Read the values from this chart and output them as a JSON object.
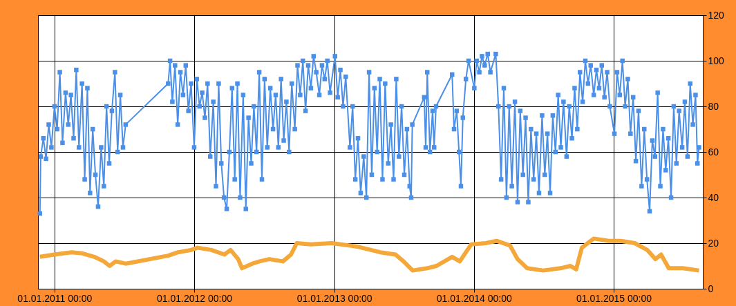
{
  "chart_data": {
    "type": "line",
    "xlim": [
      "2010-11-19",
      "2015-08-22"
    ],
    "xticks": [
      {
        "value": "2011-01-01",
        "label": "01.01.2011 00:00"
      },
      {
        "value": "2012-01-01",
        "label": "01.01.2012 00:00"
      },
      {
        "value": "2013-01-01",
        "label": "01.01.2013 00:00"
      },
      {
        "value": "2014-01-01",
        "label": "01.01.2014 00:00"
      },
      {
        "value": "2015-01-01",
        "label": "01.01.2015 00:00"
      }
    ],
    "ylim": [
      0,
      120
    ],
    "yticks": [
      0,
      20,
      40,
      60,
      80,
      100,
      120
    ],
    "grid": true,
    "series": [
      {
        "color": "#4a8fe8",
        "marker": "square",
        "x": [
          "2010-11-24",
          "2010-11-26",
          "2010-12-03",
          "2010-12-10",
          "2010-12-17",
          "2010-12-24",
          "2011-01-01",
          "2011-01-08",
          "2011-01-15",
          "2011-01-22",
          "2011-01-30",
          "2011-02-06",
          "2011-02-13",
          "2011-02-20",
          "2011-02-27",
          "2011-03-06",
          "2011-03-14",
          "2011-03-21",
          "2011-03-28",
          "2011-04-04",
          "2011-04-11",
          "2011-04-18",
          "2011-04-25",
          "2011-05-03",
          "2011-05-10",
          "2011-05-17",
          "2011-05-24",
          "2011-05-31",
          "2011-06-08",
          "2011-06-15",
          "2011-06-22",
          "2011-06-29",
          "2011-07-06",
          "2011-10-25",
          "2011-10-30",
          "2011-11-05",
          "2011-11-12",
          "2011-11-19",
          "2011-11-26",
          "2011-12-03",
          "2011-12-10",
          "2011-12-17",
          "2011-12-24",
          "2012-01-01",
          "2012-01-08",
          "2012-01-15",
          "2012-01-22",
          "2012-01-29",
          "2012-02-05",
          "2012-02-12",
          "2012-02-20",
          "2012-02-27",
          "2012-03-05",
          "2012-03-12",
          "2012-03-19",
          "2012-03-26",
          "2012-04-02",
          "2012-04-09",
          "2012-04-16",
          "2012-04-23",
          "2012-04-30",
          "2012-05-08",
          "2012-05-15",
          "2012-05-22",
          "2012-05-29",
          "2012-06-05",
          "2012-06-12",
          "2012-06-19",
          "2012-06-26",
          "2012-07-03",
          "2012-07-10",
          "2012-07-18",
          "2012-07-25",
          "2012-08-01",
          "2012-08-08",
          "2012-08-15",
          "2012-08-22",
          "2012-08-29",
          "2012-09-05",
          "2012-09-12",
          "2012-09-20",
          "2012-09-27",
          "2012-10-04",
          "2012-10-11",
          "2012-10-18",
          "2012-10-25",
          "2012-11-01",
          "2012-11-08",
          "2012-11-15",
          "2012-11-23",
          "2012-11-30",
          "2012-12-07",
          "2012-12-14",
          "2012-12-21",
          "2013-01-03",
          "2013-01-10",
          "2013-01-17",
          "2013-01-24",
          "2013-01-31",
          "2013-02-11",
          "2013-02-18",
          "2013-02-25",
          "2013-03-04",
          "2013-03-11",
          "2013-03-19",
          "2013-03-26",
          "2013-04-02",
          "2013-04-09",
          "2013-04-16",
          "2013-04-23",
          "2013-04-30",
          "2013-05-07",
          "2013-05-14",
          "2013-05-22",
          "2013-05-29",
          "2013-06-05",
          "2013-06-12",
          "2013-06-19",
          "2013-06-26",
          "2013-07-03",
          "2013-07-10",
          "2013-07-17",
          "2013-07-21",
          "2013-07-24",
          "2013-08-24",
          "2013-08-28",
          "2013-09-01",
          "2013-09-08",
          "2013-09-15",
          "2013-09-19",
          "2013-09-24",
          "2013-11-05",
          "2013-11-10",
          "2013-11-17",
          "2013-11-23",
          "2013-11-28",
          "2013-12-03",
          "2013-12-11",
          "2013-12-18",
          "2014-01-02",
          "2014-01-08",
          "2014-01-15",
          "2014-01-22",
          "2014-01-29",
          "2014-02-06",
          "2014-02-13",
          "2014-02-27",
          "2014-03-06",
          "2014-03-13",
          "2014-03-20",
          "2014-03-27",
          "2014-04-03",
          "2014-04-10",
          "2014-04-18",
          "2014-04-25",
          "2014-05-02",
          "2014-05-09",
          "2014-05-16",
          "2014-05-23",
          "2014-05-30",
          "2014-06-06",
          "2014-06-13",
          "2014-06-20",
          "2014-06-28",
          "2014-07-05",
          "2014-07-12",
          "2014-07-19",
          "2014-07-26",
          "2014-08-02",
          "2014-08-09",
          "2014-08-16",
          "2014-08-23",
          "2014-08-31",
          "2014-09-07",
          "2014-09-14",
          "2014-09-21",
          "2014-09-28",
          "2014-10-05",
          "2014-10-12",
          "2014-10-19",
          "2014-10-26",
          "2014-11-02",
          "2014-11-10",
          "2014-11-17",
          "2014-11-24",
          "2014-12-01",
          "2014-12-08",
          "2014-12-15",
          "2014-12-22",
          "2015-01-03",
          "2015-01-10",
          "2015-01-17",
          "2015-01-24",
          "2015-01-31",
          "2015-02-07",
          "2015-02-14",
          "2015-02-21",
          "2015-02-28",
          "2015-03-07",
          "2015-03-15",
          "2015-03-22",
          "2015-03-29",
          "2015-04-05",
          "2015-04-12",
          "2015-04-19",
          "2015-04-26",
          "2015-05-03",
          "2015-05-10",
          "2015-05-17",
          "2015-05-24",
          "2015-05-31",
          "2015-06-07",
          "2015-06-14",
          "2015-06-21",
          "2015-06-29",
          "2015-07-06",
          "2015-07-13",
          "2015-07-20",
          "2015-07-27",
          "2015-08-03",
          "2015-08-08",
          "2015-08-12"
        ],
        "values": [
          33,
          58,
          66,
          57,
          72,
          62,
          80,
          70,
          95,
          64,
          86,
          72,
          85,
          66,
          96,
          62,
          90,
          48,
          88,
          42,
          70,
          50,
          36,
          62,
          45,
          80,
          55,
          78,
          95,
          60,
          85,
          62,
          72,
          90,
          100,
          82,
          98,
          72,
          95,
          85,
          98,
          78,
          90,
          62,
          92,
          80,
          86,
          75,
          90,
          58,
          82,
          45,
          90,
          55,
          40,
          35,
          60,
          88,
          48,
          90,
          40,
          85,
          35,
          75,
          55,
          80,
          60,
          95,
          48,
          92,
          62,
          88,
          70,
          85,
          62,
          92,
          65,
          82,
          60,
          90,
          70,
          98,
          85,
          100,
          78,
          98,
          88,
          102,
          95,
          85,
          98,
          92,
          100,
          86,
          102,
          84,
          96,
          80,
          93,
          62,
          80,
          48,
          66,
          42,
          58,
          40,
          95,
          50,
          88,
          60,
          92,
          48,
          90,
          55,
          72,
          48,
          92,
          58,
          80,
          50,
          70,
          45,
          40,
          72,
          84,
          62,
          95,
          60,
          78,
          62,
          80,
          94,
          70,
          78,
          60,
          45,
          75,
          92,
          100,
          88,
          100,
          95,
          102,
          98,
          103,
          95,
          103,
          80,
          48,
          88,
          40,
          80,
          45,
          82,
          38,
          78,
          50,
          75,
          38,
          70,
          48,
          68,
          42,
          76,
          50,
          68,
          42,
          76,
          60,
          85,
          62,
          82,
          58,
          80,
          66,
          88,
          70,
          95,
          82,
          100,
          90,
          98,
          85,
          96,
          88,
          98,
          84,
          95,
          80,
          68,
          95,
          85,
          100,
          80,
          92,
          68,
          84,
          56,
          78,
          45,
          70,
          48,
          34,
          65,
          58,
          86,
          45,
          70,
          52,
          66,
          40,
          80,
          55,
          78,
          62,
          82,
          58,
          90,
          72,
          85,
          55,
          62
        ]
      },
      {
        "color": "#f5a83a",
        "marker": "none",
        "x": [
          "2010-11-24",
          "2011-01-01",
          "2011-02-15",
          "2011-03-15",
          "2011-04-15",
          "2011-05-10",
          "2011-05-25",
          "2011-06-10",
          "2011-07-06",
          "2011-10-25",
          "2011-11-20",
          "2011-12-24",
          "2012-01-10",
          "2012-02-15",
          "2012-03-20",
          "2012-04-05",
          "2012-04-25",
          "2012-05-05",
          "2012-06-01",
          "2012-06-20",
          "2012-07-15",
          "2012-08-20",
          "2012-09-10",
          "2012-09-25",
          "2012-11-01",
          "2012-12-25",
          "2013-03-01",
          "2013-05-01",
          "2013-06-10",
          "2013-07-01",
          "2013-07-25",
          "2013-09-01",
          "2013-09-25",
          "2013-11-05",
          "2013-11-25",
          "2013-12-25",
          "2014-02-01",
          "2014-03-01",
          "2014-04-05",
          "2014-04-25",
          "2014-05-20",
          "2014-07-01",
          "2014-08-15",
          "2014-09-10",
          "2014-09-25",
          "2014-10-10",
          "2014-11-10",
          "2014-12-20",
          "2015-01-20",
          "2015-02-25",
          "2015-03-30",
          "2015-04-20",
          "2015-05-05",
          "2015-05-25",
          "2015-07-01",
          "2015-08-12"
        ],
        "values": [
          14,
          15,
          16,
          15.5,
          14,
          12,
          10,
          12,
          11,
          14.5,
          16,
          17,
          18,
          17,
          15,
          17,
          13,
          9,
          11,
          12,
          13,
          12,
          15,
          20,
          19.5,
          20,
          18.5,
          16,
          15,
          12,
          8,
          9,
          10,
          14,
          12,
          19.5,
          20,
          21,
          19,
          13,
          9,
          8,
          9,
          10,
          8.5,
          18,
          22,
          21,
          21,
          20,
          17,
          13,
          15,
          9,
          9,
          8
        ]
      }
    ]
  }
}
